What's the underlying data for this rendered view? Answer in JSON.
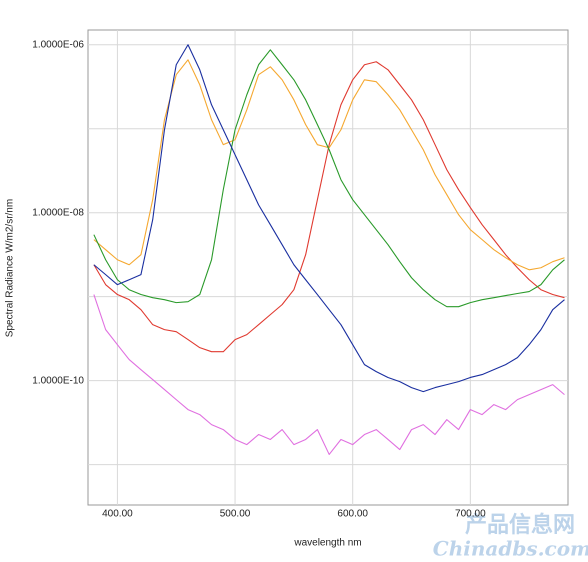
{
  "chart_data": {
    "type": "line",
    "x_label": "wavelength nm",
    "y_label": "Spectral Radiance W/m2/sr/nm",
    "watermark": [
      "产品信息网",
      "Chinadbs.com"
    ],
    "log_y": true,
    "grid": true,
    "xlim": [
      375,
      783
    ],
    "ylim": [
      3.3e-12,
      1.5e-06
    ],
    "xticks": [
      {
        "value": 400,
        "label": "400.00"
      },
      {
        "value": 500,
        "label": "500.00"
      },
      {
        "value": 600,
        "label": "600.00"
      },
      {
        "value": 700,
        "label": "700.00"
      }
    ],
    "yticks": [
      {
        "value": 1e-06,
        "label": "1.0000E-06"
      },
      {
        "value": 1e-08,
        "label": "1.0000E-08"
      },
      {
        "value": 1e-10,
        "label": "1.0000E-10"
      }
    ],
    "ygrid": [
      1e-07,
      1e-09,
      1e-11
    ],
    "x": [
      380,
      390,
      400,
      410,
      420,
      430,
      440,
      450,
      460,
      470,
      480,
      490,
      500,
      510,
      520,
      530,
      540,
      550,
      560,
      570,
      580,
      590,
      600,
      610,
      620,
      630,
      640,
      650,
      660,
      670,
      680,
      690,
      700,
      710,
      720,
      730,
      740,
      750,
      760,
      770,
      780
    ],
    "series": [
      {
        "color": "#e070e0",
        "values": [
          1.06e-09,
          4.05e-10,
          2.68e-10,
          1.78e-10,
          1.35e-10,
          1.03e-10,
          7.82e-11,
          5.94e-11,
          4.52e-11,
          3.94e-11,
          2.99e-11,
          2.61e-11,
          1.99e-11,
          1.73e-11,
          2.28e-11,
          1.99e-11,
          2.61e-11,
          1.73e-11,
          1.99e-11,
          2.61e-11,
          1.32e-11,
          1.99e-11,
          1.73e-11,
          2.28e-11,
          2.61e-11,
          1.99e-11,
          1.51e-11,
          2.61e-11,
          2.99e-11,
          2.28e-11,
          3.43e-11,
          2.61e-11,
          4.52e-11,
          3.94e-11,
          5.18e-11,
          4.52e-11,
          5.94e-11,
          6.81e-11,
          7.82e-11,
          8.96e-11,
          6.81e-11
        ]
      },
      {
        "color": "#e03a30",
        "values": [
          2.4e-09,
          1.39e-09,
          1.06e-09,
          9.21e-10,
          7e-10,
          4.64e-10,
          4.05e-10,
          3.83e-10,
          3.08e-10,
          2.47e-10,
          2.21e-10,
          2.21e-10,
          3.08e-10,
          3.53e-10,
          4.64e-10,
          6.11e-10,
          8.04e-10,
          1.21e-09,
          3.16e-09,
          1.43e-08,
          6.46e-08,
          1.93e-07,
          3.83e-07,
          5.78e-07,
          6.28e-07,
          5.04e-07,
          3.34e-07,
          2.21e-07,
          1.28e-07,
          6.46e-08,
          3.25e-08,
          1.88e-08,
          1.15e-08,
          7.2e-09,
          4.78e-09,
          3.16e-09,
          2.21e-09,
          1.59e-09,
          1.21e-09,
          1.06e-09,
          9.73e-10
        ]
      },
      {
        "color": "#f5a830",
        "values": [
          4.78e-09,
          3.63e-09,
          2.75e-09,
          2.4e-09,
          3.16e-09,
          1.43e-08,
          1.28e-07,
          4.4e-07,
          6.62e-07,
          3.34e-07,
          1.28e-07,
          6.46e-08,
          7.4e-08,
          1.68e-07,
          4.4e-07,
          5.47e-07,
          3.83e-07,
          2.21e-07,
          1.12e-07,
          6.46e-08,
          5.94e-08,
          9.73e-08,
          2.21e-07,
          3.83e-07,
          3.63e-07,
          2.54e-07,
          1.68e-07,
          9.73e-08,
          5.62e-08,
          2.83e-08,
          1.64e-08,
          9.46e-09,
          6.28e-09,
          4.78e-09,
          3.63e-09,
          2.91e-09,
          2.4e-09,
          2.09e-09,
          2.21e-09,
          2.61e-09,
          2.91e-09
        ]
      },
      {
        "color": "#2a9a2a",
        "values": [
          5.47e-09,
          2.75e-09,
          1.59e-09,
          1.21e-09,
          1.06e-09,
          9.73e-10,
          9.21e-10,
          8.49e-10,
          8.71e-10,
          1.06e-09,
          2.75e-09,
          1.88e-08,
          9.73e-08,
          2.54e-07,
          5.78e-07,
          8.71e-07,
          5.78e-07,
          3.83e-07,
          2.21e-07,
          1.12e-07,
          5.62e-08,
          2.47e-08,
          1.43e-08,
          9.46e-09,
          6.28e-09,
          4.16e-09,
          2.61e-09,
          1.68e-09,
          1.21e-09,
          9.21e-10,
          7.6e-10,
          7.6e-10,
          8.49e-10,
          9.21e-10,
          9.73e-10,
          1.03e-09,
          1.09e-09,
          1.15e-09,
          1.39e-09,
          2.09e-09,
          2.75e-09
        ]
      },
      {
        "color": "#1a2fa0",
        "values": [
          2.4e-09,
          1.83e-09,
          1.39e-09,
          1.59e-09,
          1.83e-09,
          8.26e-09,
          9.73e-08,
          5.78e-07,
          1e-06,
          5.04e-07,
          1.93e-07,
          9.73e-08,
          4.9e-08,
          2.47e-08,
          1.24e-08,
          7.2e-09,
          4.16e-09,
          2.4e-09,
          1.59e-09,
          1.06e-09,
          7e-10,
          4.64e-10,
          2.68e-10,
          1.55e-10,
          1.28e-10,
          1.09e-10,
          9.73e-11,
          8.26e-11,
          7.4e-11,
          8.26e-11,
          8.96e-11,
          9.73e-11,
          1.09e-10,
          1.18e-10,
          1.35e-10,
          1.55e-10,
          1.88e-10,
          2.68e-10,
          4.05e-10,
          7e-10,
          9.21e-10
        ]
      }
    ]
  }
}
